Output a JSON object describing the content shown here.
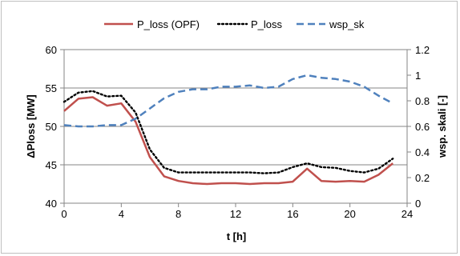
{
  "chart_data": {
    "type": "line",
    "xlabel": "t [h]",
    "ylabel": "ΔPloss [MW]",
    "y2label": "wsp. skali [-]",
    "xlim": [
      0,
      24
    ],
    "ylim": [
      40,
      60
    ],
    "y2lim": [
      0,
      1.2
    ],
    "xticks": [
      0,
      4,
      8,
      12,
      16,
      20,
      24
    ],
    "yticks": [
      40,
      45,
      50,
      55,
      60
    ],
    "y2ticks": [
      "0",
      "0.2",
      "0.4",
      "0.6",
      "0.8",
      "1",
      "1.2"
    ],
    "y2tick_values": [
      0,
      0.2,
      0.4,
      0.6,
      0.8,
      1.0,
      1.2
    ],
    "grid": "horizontal",
    "legend_position": "top",
    "x": [
      0,
      1,
      2,
      3,
      4,
      5,
      6,
      7,
      8,
      9,
      10,
      11,
      12,
      13,
      14,
      15,
      16,
      17,
      18,
      19,
      20,
      21,
      22,
      23
    ],
    "series": [
      {
        "name": "P_loss (OPF)",
        "axis": "left",
        "color": "#c0504d",
        "style": "solid",
        "values": [
          52.0,
          53.6,
          53.8,
          52.7,
          53.0,
          50.6,
          46.0,
          43.5,
          42.9,
          42.6,
          42.5,
          42.6,
          42.6,
          42.5,
          42.6,
          42.6,
          42.8,
          44.5,
          42.9,
          42.8,
          42.9,
          42.8,
          43.7,
          45.2
        ]
      },
      {
        "name": "P_loss",
        "axis": "left",
        "color": "#000000",
        "style": "dotted",
        "values": [
          53.2,
          54.4,
          54.6,
          53.9,
          54.0,
          51.8,
          47.0,
          44.6,
          44.0,
          44.0,
          44.0,
          44.0,
          44.0,
          44.0,
          43.9,
          44.0,
          44.7,
          45.2,
          44.7,
          44.6,
          44.2,
          44.0,
          44.5,
          45.8
        ]
      },
      {
        "name": "wsp_sk",
        "axis": "right",
        "color": "#4f81bd",
        "style": "dashed",
        "values": [
          0.61,
          0.6,
          0.6,
          0.61,
          0.61,
          0.66,
          0.74,
          0.82,
          0.87,
          0.89,
          0.89,
          0.91,
          0.91,
          0.92,
          0.9,
          0.91,
          0.97,
          1.0,
          0.98,
          0.97,
          0.95,
          0.91,
          0.84,
          0.78
        ]
      }
    ]
  }
}
